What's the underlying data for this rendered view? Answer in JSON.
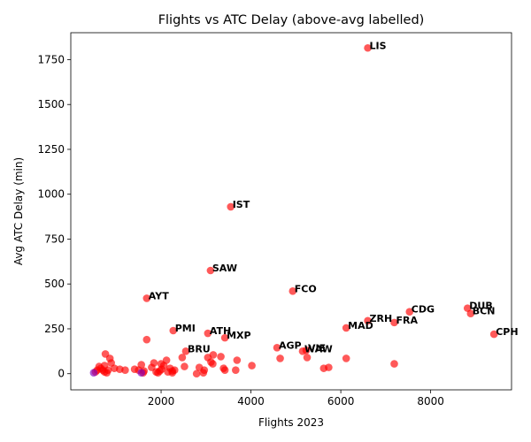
{
  "chart_data": {
    "type": "scatter",
    "title": "Flights vs ATC Delay (above-avg labelled)",
    "xlabel": "Flights 2023",
    "ylabel": "Avg ATC Delay (min)",
    "xlim": [
      -10,
      9800
    ],
    "ylim": [
      -90,
      1900
    ],
    "xticks": [
      2000,
      4000,
      6000,
      8000
    ],
    "xtick_labels": [
      "2000",
      "4000",
      "6000",
      "8000"
    ],
    "yticks": [
      0,
      250,
      500,
      750,
      1000,
      1250,
      1500,
      1750
    ],
    "ytick_labels": [
      "0",
      "250",
      "500",
      "750",
      "1000",
      "1250",
      "1500",
      "1750"
    ],
    "grid": false,
    "colors": {
      "point": "#ff0000",
      "highlight": "#7f00c0",
      "text": "#000000"
    },
    "labelled_points": [
      {
        "label": "LIS",
        "x": 6600,
        "y": 1815
      },
      {
        "label": "IST",
        "x": 3550,
        "y": 930
      },
      {
        "label": "SAW",
        "x": 3100,
        "y": 575
      },
      {
        "label": "FCO",
        "x": 4930,
        "y": 460
      },
      {
        "label": "AYT",
        "x": 1680,
        "y": 420
      },
      {
        "label": "CDG",
        "x": 7530,
        "y": 345
      },
      {
        "label": "DUB",
        "x": 8820,
        "y": 365
      },
      {
        "label": "BCN",
        "x": 8890,
        "y": 335
      },
      {
        "label": "ZRH",
        "x": 6600,
        "y": 295
      },
      {
        "label": "FRA",
        "x": 7190,
        "y": 285
      },
      {
        "label": "MAD",
        "x": 6120,
        "y": 255
      },
      {
        "label": "PMI",
        "x": 2270,
        "y": 240
      },
      {
        "label": "ATH",
        "x": 3040,
        "y": 225
      },
      {
        "label": "MXP",
        "x": 3420,
        "y": 200
      },
      {
        "label": "CPH",
        "x": 9410,
        "y": 220
      },
      {
        "label": "AGP",
        "x": 4580,
        "y": 145
      },
      {
        "label": "VIE",
        "x": 5230,
        "y": 130
      },
      {
        "label": "WAW",
        "x": 5150,
        "y": 125
      },
      {
        "label": "BRU",
        "x": 2550,
        "y": 125
      }
    ],
    "other_points": [
      {
        "x": 4650,
        "y": 85
      },
      {
        "x": 5250,
        "y": 90
      },
      {
        "x": 6120,
        "y": 85
      },
      {
        "x": 7190,
        "y": 55
      },
      {
        "x": 5620,
        "y": 30
      },
      {
        "x": 5730,
        "y": 35
      },
      {
        "x": 4020,
        "y": 45
      },
      {
        "x": 3690,
        "y": 75
      },
      {
        "x": 3660,
        "y": 20
      },
      {
        "x": 3420,
        "y": 20
      },
      {
        "x": 3390,
        "y": 30
      },
      {
        "x": 3330,
        "y": 95
      },
      {
        "x": 3160,
        "y": 105
      },
      {
        "x": 3150,
        "y": 55
      },
      {
        "x": 3110,
        "y": 65
      },
      {
        "x": 3040,
        "y": 90
      },
      {
        "x": 2960,
        "y": 20
      },
      {
        "x": 2940,
        "y": 5
      },
      {
        "x": 2850,
        "y": 35
      },
      {
        "x": 2790,
        "y": 0
      },
      {
        "x": 2470,
        "y": 90
      },
      {
        "x": 2520,
        "y": 40
      },
      {
        "x": 2300,
        "y": 20
      },
      {
        "x": 2250,
        "y": 15
      },
      {
        "x": 2200,
        "y": 30
      },
      {
        "x": 2150,
        "y": 10
      },
      {
        "x": 2120,
        "y": 75
      },
      {
        "x": 2060,
        "y": 45
      },
      {
        "x": 2010,
        "y": 25
      },
      {
        "x": 1970,
        "y": 15
      },
      {
        "x": 1930,
        "y": 5
      },
      {
        "x": 1890,
        "y": 10
      },
      {
        "x": 1840,
        "y": 60
      },
      {
        "x": 1790,
        "y": 35
      },
      {
        "x": 1680,
        "y": 190
      },
      {
        "x": 1620,
        "y": 15
      },
      {
        "x": 1560,
        "y": 50
      },
      {
        "x": 1500,
        "y": 20
      },
      {
        "x": 1410,
        "y": 25
      },
      {
        "x": 1200,
        "y": 20
      },
      {
        "x": 1080,
        "y": 25
      },
      {
        "x": 960,
        "y": 30
      },
      {
        "x": 890,
        "y": 60
      },
      {
        "x": 860,
        "y": 85
      },
      {
        "x": 820,
        "y": 20
      },
      {
        "x": 790,
        "y": 5
      },
      {
        "x": 760,
        "y": 110
      },
      {
        "x": 740,
        "y": 45
      },
      {
        "x": 700,
        "y": 20
      },
      {
        "x": 660,
        "y": 30
      },
      {
        "x": 620,
        "y": 40
      },
      {
        "x": 580,
        "y": 20
      },
      {
        "x": 540,
        "y": 10
      },
      {
        "x": 2000,
        "y": 55
      },
      {
        "x": 2250,
        "y": 5
      },
      {
        "x": 1600,
        "y": 5
      },
      {
        "x": 740,
        "y": 10
      }
    ],
    "highlight_points": [
      {
        "x": 500,
        "y": 5
      },
      {
        "x": 1560,
        "y": 5
      }
    ]
  }
}
